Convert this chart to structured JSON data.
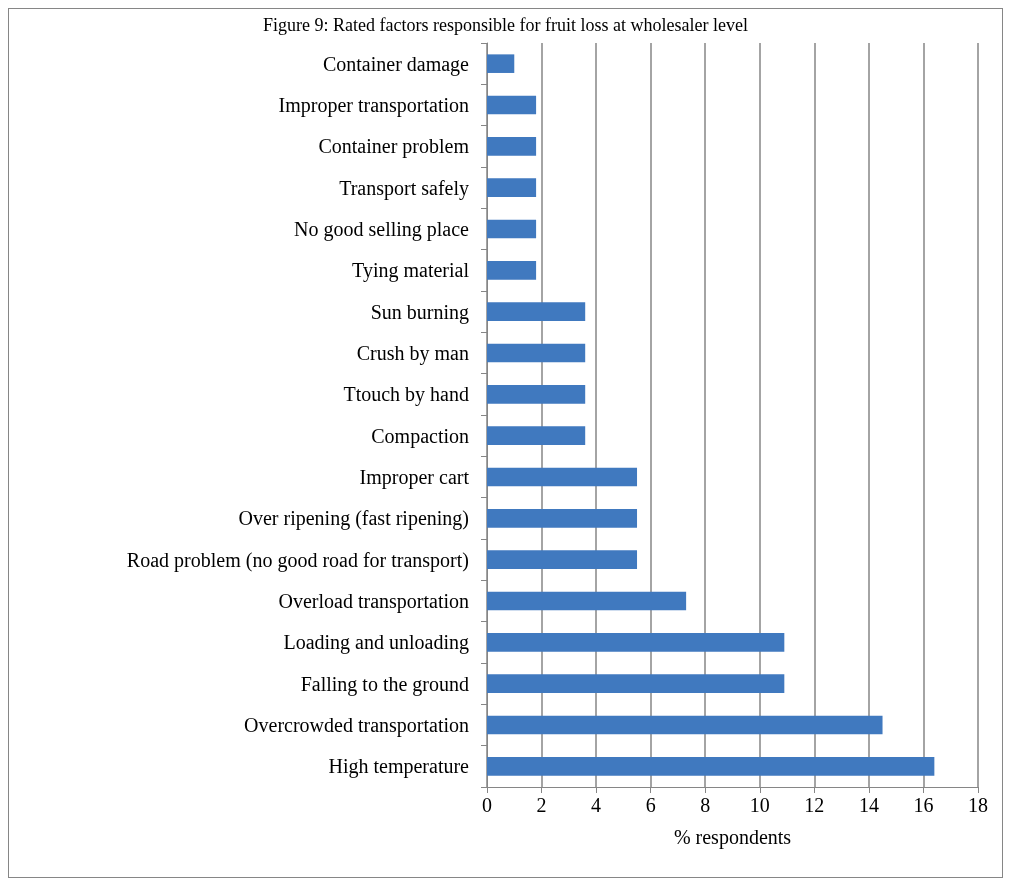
{
  "chart_data": {
    "type": "bar",
    "orientation": "horizontal",
    "title": "Figure 9: Rated factors responsible for fruit loss at wholesaler level",
    "xlabel": "% respondents",
    "categories": [
      "Container damage",
      "Improper transportation",
      "Container problem",
      "Transport safely",
      "No good selling place",
      "Tying material",
      "Sun burning",
      "Crush by man",
      "Ttouch by hand",
      "Compaction",
      "Improper cart",
      "Over ripening (fast ripening)",
      "Road problem (no good road for transport)",
      "Overload transportation",
      "Loading and unloading",
      "Falling to the ground",
      "Overcrowded transportation",
      "High temperature"
    ],
    "values": [
      1.0,
      1.8,
      1.8,
      1.8,
      1.8,
      1.8,
      3.6,
      3.6,
      3.6,
      3.6,
      5.5,
      5.5,
      5.5,
      7.3,
      10.9,
      10.9,
      14.5,
      16.4
    ],
    "color": "#4079bf",
    "xlim": [
      0,
      18
    ],
    "xticks": [
      0,
      2,
      4,
      6,
      8,
      10,
      12,
      14,
      16,
      18
    ],
    "grid": "x"
  }
}
